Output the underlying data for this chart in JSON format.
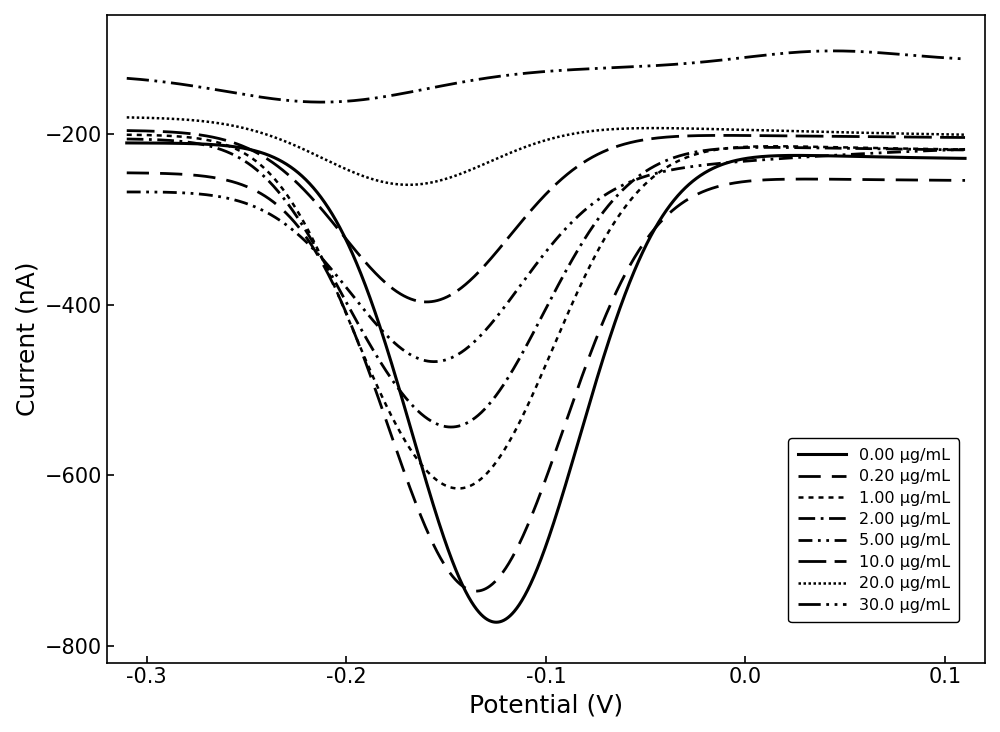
{
  "xlabel": "Potential (V)",
  "ylabel": "Current (nA)",
  "xlim": [
    -0.32,
    0.12
  ],
  "ylim": [
    -820,
    -60
  ],
  "yticks": [
    -800,
    -600,
    -400,
    -200
  ],
  "xticks": [
    -0.3,
    -0.2,
    -0.1,
    0.0,
    0.1
  ],
  "background_color": "#ffffff",
  "legend_labels": [
    "0.00 μg/mL",
    "0.20 μg/mL",
    "1.00 μg/mL",
    "2.00 μg/mL",
    "5.00 μg/mL",
    "10.0 μg/mL",
    "20.0 μg/mL",
    "30.0 μg/mL"
  ],
  "font_size": 16,
  "label_fontsize": 18,
  "tick_fontsize": 15
}
